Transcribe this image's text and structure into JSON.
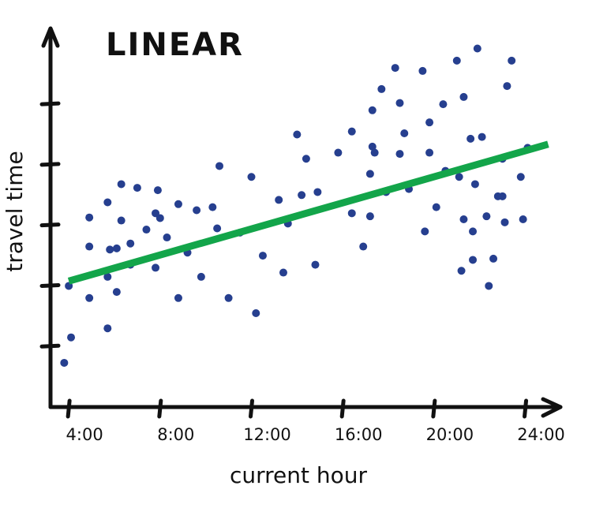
{
  "chart_data": {
    "type": "scatter",
    "title": "LINEAR",
    "xlabel": "current hour",
    "ylabel": "travel time",
    "x_ticks": [
      {
        "value": 4,
        "label": "4:00"
      },
      {
        "value": 8,
        "label": "8:00"
      },
      {
        "value": 12,
        "label": "12:00"
      },
      {
        "value": 16,
        "label": "16:00"
      },
      {
        "value": 20,
        "label": "20:00"
      },
      {
        "value": 24,
        "label": "24:00"
      }
    ],
    "y_ticks": [
      1,
      2,
      3,
      4,
      5
    ],
    "xlim": [
      3.2,
      24.5
    ],
    "ylim": [
      0,
      6.2
    ],
    "grid": false,
    "legend": "none",
    "colors": {
      "points": "#263f8f",
      "trend": "#13a54a",
      "axes": "#111111"
    },
    "trendline": {
      "x": [
        4,
        25
      ],
      "y": [
        2.08,
        4.34
      ]
    },
    "points": [
      {
        "x": 3.8,
        "y": 0.73
      },
      {
        "x": 4.1,
        "y": 1.15
      },
      {
        "x": 4.0,
        "y": 2.0
      },
      {
        "x": 4.9,
        "y": 1.8
      },
      {
        "x": 4.9,
        "y": 2.65
      },
      {
        "x": 4.9,
        "y": 3.13
      },
      {
        "x": 5.7,
        "y": 1.3
      },
      {
        "x": 5.7,
        "y": 2.15
      },
      {
        "x": 5.8,
        "y": 2.6
      },
      {
        "x": 5.7,
        "y": 3.38
      },
      {
        "x": 6.1,
        "y": 1.9
      },
      {
        "x": 6.1,
        "y": 2.62
      },
      {
        "x": 6.3,
        "y": 3.08
      },
      {
        "x": 6.3,
        "y": 3.68
      },
      {
        "x": 6.7,
        "y": 2.35
      },
      {
        "x": 6.7,
        "y": 2.7
      },
      {
        "x": 7.0,
        "y": 3.62
      },
      {
        "x": 7.4,
        "y": 2.93
      },
      {
        "x": 7.8,
        "y": 2.3
      },
      {
        "x": 7.8,
        "y": 3.2
      },
      {
        "x": 8.0,
        "y": 3.12
      },
      {
        "x": 7.9,
        "y": 3.58
      },
      {
        "x": 8.3,
        "y": 2.8
      },
      {
        "x": 8.8,
        "y": 1.8
      },
      {
        "x": 8.8,
        "y": 3.35
      },
      {
        "x": 9.2,
        "y": 2.55
      },
      {
        "x": 9.6,
        "y": 3.25
      },
      {
        "x": 9.8,
        "y": 2.15
      },
      {
        "x": 10.3,
        "y": 3.3
      },
      {
        "x": 10.5,
        "y": 2.95
      },
      {
        "x": 10.6,
        "y": 3.98
      },
      {
        "x": 11.0,
        "y": 1.8
      },
      {
        "x": 11.5,
        "y": 2.88
      },
      {
        "x": 12.0,
        "y": 3.8
      },
      {
        "x": 12.2,
        "y": 1.55
      },
      {
        "x": 12.5,
        "y": 2.5
      },
      {
        "x": 13.2,
        "y": 3.42
      },
      {
        "x": 13.4,
        "y": 2.22
      },
      {
        "x": 13.6,
        "y": 3.03
      },
      {
        "x": 14.0,
        "y": 4.5
      },
      {
        "x": 14.2,
        "y": 3.5
      },
      {
        "x": 14.4,
        "y": 4.1
      },
      {
        "x": 14.8,
        "y": 2.35
      },
      {
        "x": 14.9,
        "y": 3.55
      },
      {
        "x": 15.8,
        "y": 4.2
      },
      {
        "x": 16.4,
        "y": 4.55
      },
      {
        "x": 16.4,
        "y": 3.2
      },
      {
        "x": 16.9,
        "y": 2.65
      },
      {
        "x": 17.2,
        "y": 3.85
      },
      {
        "x": 17.3,
        "y": 4.3
      },
      {
        "x": 17.3,
        "y": 4.9
      },
      {
        "x": 17.4,
        "y": 4.2
      },
      {
        "x": 17.2,
        "y": 3.15
      },
      {
        "x": 17.7,
        "y": 5.25
      },
      {
        "x": 17.9,
        "y": 3.55
      },
      {
        "x": 18.3,
        "y": 5.6
      },
      {
        "x": 18.5,
        "y": 4.18
      },
      {
        "x": 18.5,
        "y": 5.02
      },
      {
        "x": 18.7,
        "y": 4.52
      },
      {
        "x": 18.9,
        "y": 3.6
      },
      {
        "x": 19.5,
        "y": 5.55
      },
      {
        "x": 19.6,
        "y": 2.9
      },
      {
        "x": 19.8,
        "y": 4.2
      },
      {
        "x": 19.8,
        "y": 4.7
      },
      {
        "x": 20.1,
        "y": 3.3
      },
      {
        "x": 20.4,
        "y": 5.0
      },
      {
        "x": 20.5,
        "y": 3.9
      },
      {
        "x": 21.0,
        "y": 5.72
      },
      {
        "x": 21.1,
        "y": 3.8
      },
      {
        "x": 21.2,
        "y": 2.25
      },
      {
        "x": 21.3,
        "y": 3.1
      },
      {
        "x": 21.3,
        "y": 5.12
      },
      {
        "x": 21.6,
        "y": 4.43
      },
      {
        "x": 21.7,
        "y": 2.9
      },
      {
        "x": 21.7,
        "y": 2.43
      },
      {
        "x": 21.8,
        "y": 3.68
      },
      {
        "x": 21.9,
        "y": 5.92
      },
      {
        "x": 22.3,
        "y": 3.15
      },
      {
        "x": 22.4,
        "y": 2.0
      },
      {
        "x": 22.6,
        "y": 2.45
      },
      {
        "x": 22.8,
        "y": 3.48
      },
      {
        "x": 23.0,
        "y": 4.1
      },
      {
        "x": 23.1,
        "y": 3.05
      },
      {
        "x": 23.2,
        "y": 5.3
      },
      {
        "x": 23.4,
        "y": 5.72
      },
      {
        "x": 23.8,
        "y": 3.8
      },
      {
        "x": 23.9,
        "y": 3.1
      },
      {
        "x": 24.1,
        "y": 4.28
      },
      {
        "x": 23.0,
        "y": 3.48
      },
      {
        "x": 22.1,
        "y": 4.46
      }
    ]
  }
}
